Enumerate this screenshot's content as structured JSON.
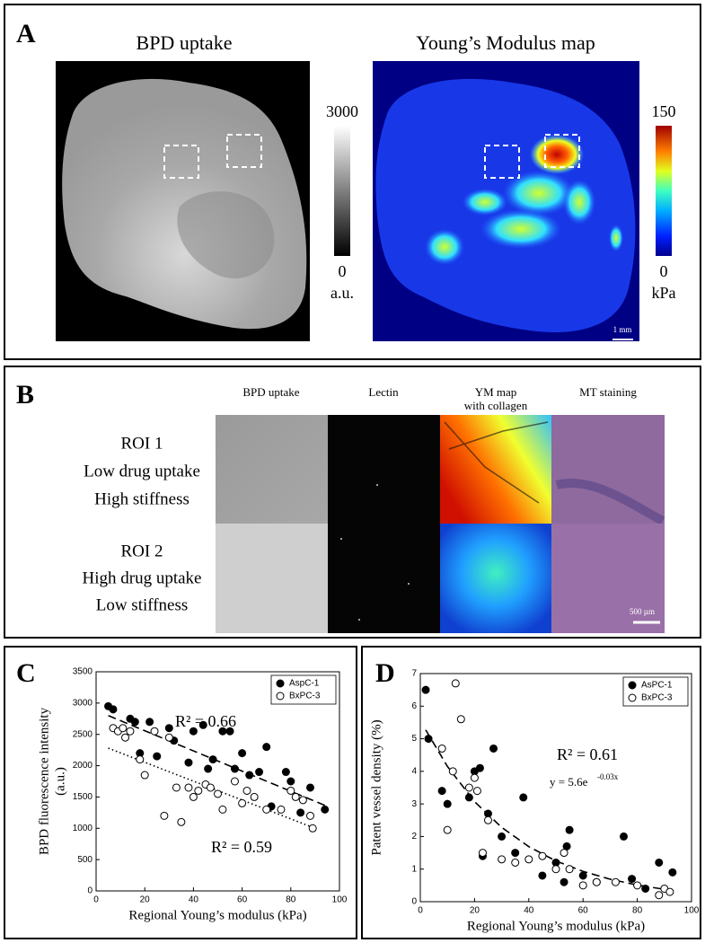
{
  "panel_a": {
    "label": "A",
    "left_title": "BPD uptake",
    "left_colorbar": {
      "max": 3000,
      "min": 0,
      "unit": "a.u."
    },
    "right_title": "Young’s Modulus map",
    "right_colorbar": {
      "max": 150,
      "min": 0,
      "unit": "kPa"
    },
    "scale_bar": "1 mm"
  },
  "panel_b": {
    "label": "B",
    "columns": [
      [
        "BPD uptake"
      ],
      [
        "Lectin"
      ],
      [
        "YM map",
        "with collagen"
      ],
      [
        "MT staining"
      ]
    ],
    "rows": [
      [
        "ROI 1",
        "Low drug uptake",
        "High stiffness"
      ],
      [
        "ROI 2",
        "High drug uptake",
        "Low stiffness"
      ]
    ],
    "scale_bar": "500 µm"
  },
  "chart_data": [
    {
      "type": "scatter",
      "label": "C",
      "xlabel": "Regional Young’s modulus (kPa)",
      "ylabel": [
        "BPD fluorescence intensity",
        "(a.u.)"
      ],
      "xlim": [
        0,
        100
      ],
      "xticks": [
        0,
        20,
        40,
        60,
        80,
        100
      ],
      "ylim": [
        0,
        3500
      ],
      "yticks": [
        0,
        500,
        1000,
        1500,
        2000,
        2500,
        3000,
        3500
      ],
      "legend": "upper right",
      "series": [
        {
          "name": "AspC-1",
          "color": "#000000",
          "marker": "filled",
          "x": [
            5,
            7,
            14,
            16,
            18,
            22,
            25,
            30,
            32,
            38,
            40,
            44,
            46,
            48,
            52,
            55,
            57,
            60,
            63,
            67,
            70,
            72,
            78,
            80,
            84,
            88,
            94
          ],
          "values": [
            2950,
            2900,
            2750,
            2700,
            2200,
            2700,
            2150,
            2600,
            2400,
            2050,
            2550,
            2650,
            1950,
            2100,
            2550,
            2550,
            1950,
            2200,
            1850,
            1900,
            2300,
            1350,
            1900,
            1750,
            1250,
            1650,
            1300
          ]
        },
        {
          "name": "BxPC-3",
          "color": "#000000",
          "marker": "open",
          "x": [
            7,
            9,
            11,
            12,
            14,
            18,
            20,
            24,
            28,
            30,
            33,
            35,
            38,
            40,
            42,
            45,
            47,
            50,
            52,
            57,
            60,
            62,
            65,
            70,
            76,
            80,
            82,
            85,
            88,
            89
          ],
          "values": [
            2600,
            2550,
            2600,
            2450,
            2550,
            2100,
            1850,
            2550,
            1200,
            2450,
            1650,
            1100,
            1650,
            1500,
            1600,
            1700,
            1650,
            1550,
            1300,
            1750,
            1400,
            1600,
            1500,
            1300,
            1300,
            1600,
            1500,
            1450,
            1200,
            1000
          ]
        }
      ],
      "fits": [
        {
          "style": "dashed",
          "x": [
            5,
            95
          ],
          "y": [
            2800,
            1350
          ]
        },
        {
          "style": "dotted",
          "x": [
            5,
            90
          ],
          "y": [
            2280,
            1000
          ]
        }
      ],
      "annotations": [
        "R² = 0.66",
        "R² = 0.59"
      ]
    },
    {
      "type": "scatter",
      "label": "D",
      "xlabel": "Regional Young’s modulus (kPa)",
      "ylabel": [
        "Patent vessel density (%)"
      ],
      "xlim": [
        0,
        100
      ],
      "xticks": [
        0,
        20,
        40,
        60,
        80,
        100
      ],
      "ylim": [
        0,
        7
      ],
      "yticks": [
        0,
        1,
        2,
        3,
        4,
        5,
        6,
        7
      ],
      "legend": "upper right",
      "series": [
        {
          "name": "AsPC-1",
          "color": "#000000",
          "marker": "filled",
          "x": [
            2,
            3,
            8,
            10,
            18,
            20,
            22,
            23,
            25,
            27,
            30,
            35,
            38,
            45,
            50,
            53,
            54,
            55,
            60,
            65,
            75,
            78,
            83,
            88,
            93
          ],
          "values": [
            6.5,
            5,
            3.4,
            3,
            3.2,
            4,
            4.1,
            1.4,
            2.7,
            4.7,
            2,
            1.5,
            3.2,
            0.8,
            1.2,
            0.6,
            1.7,
            2.2,
            0.8,
            0.6,
            2,
            0.7,
            0.4,
            1.2,
            0.9
          ]
        },
        {
          "name": "BxPC-3",
          "color": "#000000",
          "marker": "open",
          "x": [
            8,
            10,
            12,
            13,
            15,
            18,
            20,
            21,
            23,
            25,
            30,
            35,
            40,
            45,
            50,
            53,
            55,
            60,
            65,
            72,
            80,
            88,
            90,
            92
          ],
          "values": [
            4.7,
            2.2,
            4,
            6.7,
            5.6,
            3.5,
            3.8,
            3.4,
            1.5,
            2.5,
            1.3,
            1.2,
            1.3,
            1.4,
            1,
            1.5,
            1,
            0.5,
            0.6,
            0.6,
            0.5,
            0.2,
            0.4,
            0.3
          ]
        }
      ],
      "fits": [
        {
          "style": "dashed",
          "x": [
            2,
            10,
            20,
            30,
            40,
            50,
            60,
            70,
            80,
            90,
            95
          ],
          "y": [
            5.27,
            4.15,
            3.07,
            2.28,
            1.69,
            1.25,
            0.93,
            0.69,
            0.51,
            0.38,
            0.32
          ]
        }
      ],
      "annotations": [
        "R² = 0.61",
        "y = 5.6e",
        "-0.03x"
      ]
    }
  ]
}
